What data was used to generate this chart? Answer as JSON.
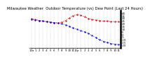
{
  "title": "Milwaukee Weather  Outdoor Temperature (vs) Dew Point (Last 24 Hours)",
  "temp_values": [
    30,
    28,
    26,
    25,
    24,
    23,
    22,
    22,
    23,
    26,
    31,
    35,
    37,
    36,
    33,
    30,
    28,
    27,
    26,
    25,
    25,
    24,
    24,
    24
  ],
  "dew_values": [
    28,
    27,
    26,
    25,
    24,
    23,
    22,
    21,
    20,
    18,
    15,
    12,
    10,
    7,
    5,
    2,
    -2,
    -6,
    -10,
    -13,
    -15,
    -17,
    -18,
    -19
  ],
  "x_labels": [
    "12a",
    "1",
    "2",
    "3",
    "4",
    "5",
    "6",
    "7",
    "8",
    "9",
    "10",
    "11",
    "12p",
    "1",
    "2",
    "3",
    "4",
    "5",
    "6",
    "7",
    "8",
    "9",
    "10",
    "11"
  ],
  "ylim": [
    -25,
    45
  ],
  "yticks": [
    40,
    35,
    30,
    25,
    20,
    15,
    10,
    5,
    0,
    -5,
    -10,
    -15,
    -20
  ],
  "temp_color": "#cc0000",
  "dew_color": "#0000cc",
  "grid_color": "#bbbbbb",
  "bg_color": "#ffffff",
  "title_color": "#000000",
  "title_fontsize": 3.8,
  "tick_fontsize": 2.8,
  "linewidth": 0.7,
  "markersize": 1.2
}
